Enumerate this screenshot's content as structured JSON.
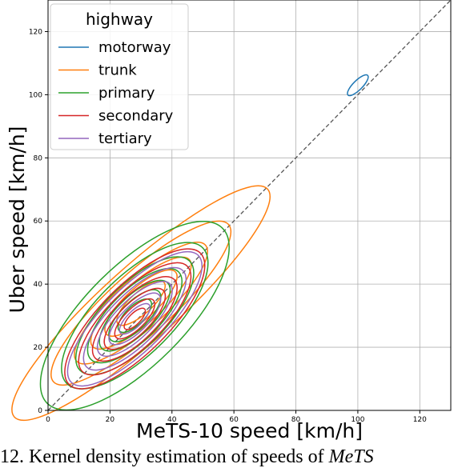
{
  "chart_data": {
    "type": "contour",
    "title": "",
    "xlabel": "MeTS-10 speed [km/h]",
    "ylabel": "Uber speed [km/h]",
    "xlim": [
      0,
      130
    ],
    "ylim": [
      0,
      130
    ],
    "xticks": [
      0,
      20,
      40,
      60,
      80,
      100,
      120
    ],
    "yticks": [
      0,
      20,
      40,
      60,
      80,
      100,
      120
    ],
    "grid": true,
    "legend_title": "highway",
    "legend_position": "top-left",
    "diagonal": {
      "from": [
        0,
        0
      ],
      "to": [
        130,
        130
      ],
      "style": "dashed",
      "color": "#555555"
    },
    "series": [
      {
        "name": "motorway",
        "color": "#1f77b4",
        "center": [
          100,
          103
        ],
        "levels": [
          {
            "rx": 4.5,
            "ry": 1.5
          }
        ],
        "angle": 45
      },
      {
        "name": "trunk",
        "color": "#ff7f0e",
        "center": [
          30,
          34
        ],
        "levels": [
          {
            "rx": 55,
            "ry": 12
          },
          {
            "rx": 38,
            "ry": 10
          },
          {
            "rx": 28,
            "ry": 8
          },
          {
            "rx": 21,
            "ry": 6.5
          },
          {
            "rx": 15,
            "ry": 5
          },
          {
            "rx": 10,
            "ry": 3.5
          }
        ],
        "angle": 42
      },
      {
        "name": "primary",
        "color": "#2ca02c",
        "center": [
          28,
          30
        ],
        "levels": [
          {
            "rx": 40,
            "ry": 16
          },
          {
            "rx": 31,
            "ry": 12.5
          },
          {
            "rx": 25,
            "ry": 10
          },
          {
            "rx": 20,
            "ry": 8
          },
          {
            "rx": 15,
            "ry": 6
          },
          {
            "rx": 11,
            "ry": 4.4
          },
          {
            "rx": 7,
            "ry": 3
          }
        ],
        "angle": 45
      },
      {
        "name": "secondary",
        "color": "#d62728",
        "center": [
          28,
          29
        ],
        "levels": [
          {
            "rx": 30,
            "ry": 11
          },
          {
            "rx": 24,
            "ry": 9
          },
          {
            "rx": 18,
            "ry": 7
          },
          {
            "rx": 13,
            "ry": 5
          },
          {
            "rx": 8.5,
            "ry": 3.3
          },
          {
            "rx": 4.5,
            "ry": 1.8
          }
        ],
        "angle": 45
      },
      {
        "name": "tertiary",
        "color": "#9467bd",
        "center": [
          28,
          29
        ],
        "levels": [
          {
            "rx": 29,
            "ry": 10
          },
          {
            "rx": 22,
            "ry": 8
          },
          {
            "rx": 16,
            "ry": 6
          },
          {
            "rx": 11,
            "ry": 4.2
          },
          {
            "rx": 6.5,
            "ry": 2.5
          }
        ],
        "angle": 45
      }
    ]
  },
  "caption": {
    "lead": "12. Kernel density estimation of speeds of ",
    "tail": "MeTS"
  }
}
